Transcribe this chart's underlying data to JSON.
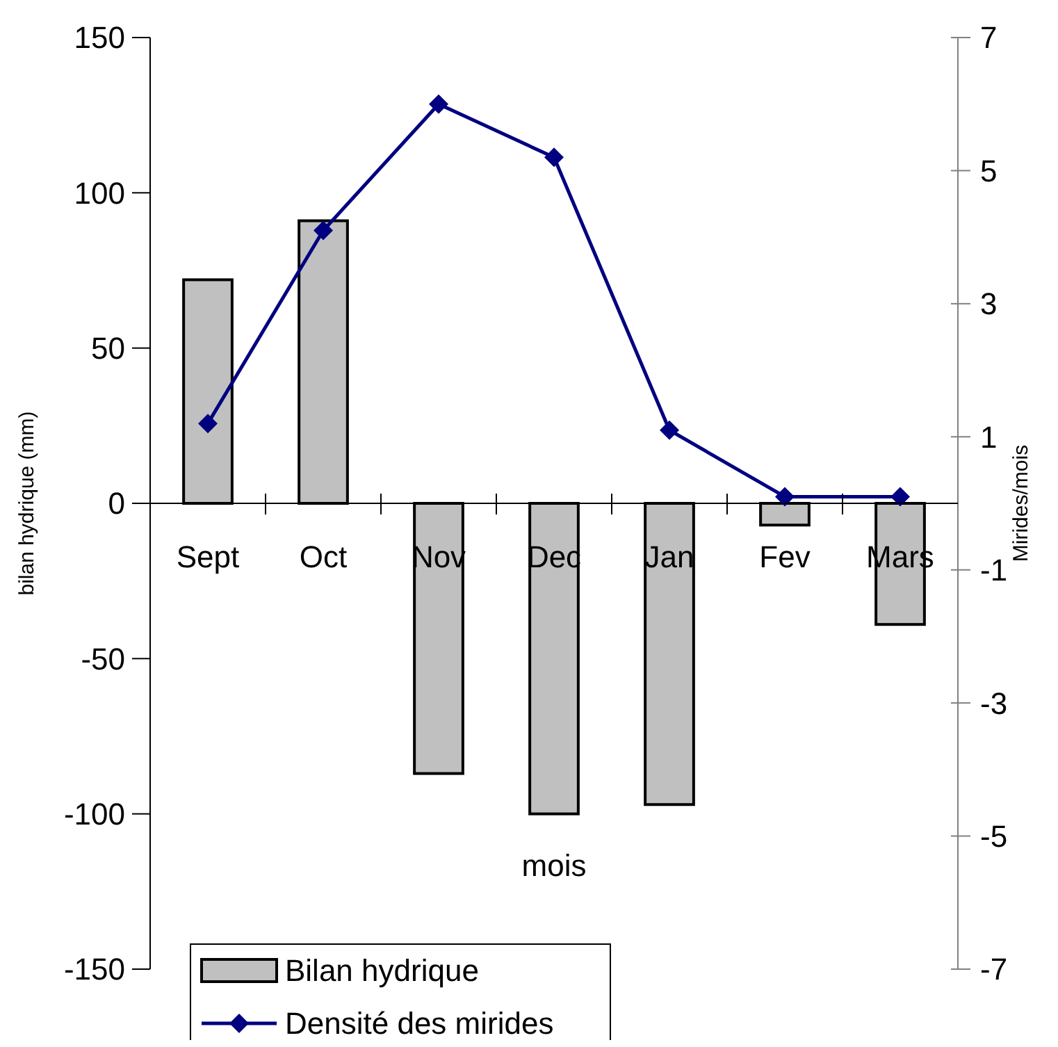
{
  "chart_data": {
    "type": "bar",
    "xlabel": "mois",
    "ylabel": "bilan hydrique (mm)",
    "y2label": "Mirides/mois",
    "categories": [
      "Sept",
      "Oct",
      "Nov",
      "Dec",
      "Jan",
      "Fev",
      "Mars"
    ],
    "series": [
      {
        "name": "Bilan hydrique",
        "color": "#c0c0c0",
        "values": [
          72,
          91,
          -87,
          -100,
          -97,
          -7,
          -39
        ]
      },
      {
        "name": "Densité des mirides",
        "type": "line",
        "axis": "y2",
        "color": "#000080",
        "marker": "diamond",
        "values": [
          1.2,
          4.1,
          6.0,
          5.2,
          1.1,
          0.1,
          0.1
        ]
      }
    ],
    "ylim": [
      -150,
      150
    ],
    "yticks": [
      -150,
      -100,
      -50,
      0,
      50,
      100,
      150
    ],
    "y2lim": [
      -7,
      7
    ],
    "y2ticks": [
      -7,
      -5,
      -3,
      -1,
      1,
      3,
      5,
      7
    ],
    "grid": false,
    "legend": "bottom left"
  }
}
